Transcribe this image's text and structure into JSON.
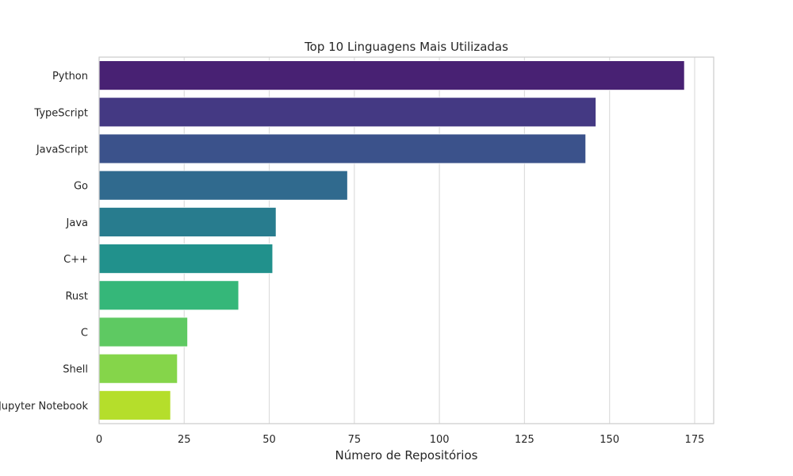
{
  "chart_data": {
    "type": "bar",
    "orientation": "horizontal",
    "title": "Top 10 Linguagens Mais Utilizadas",
    "xlabel": "Número de Repositórios",
    "ylabel": "",
    "categories": [
      "Python",
      "TypeScript",
      "JavaScript",
      "Go",
      "Java",
      "C++",
      "Rust",
      "C",
      "Shell",
      "Jupyter Notebook"
    ],
    "values": [
      172,
      146,
      143,
      73,
      52,
      51,
      41,
      26,
      23,
      21
    ],
    "colors": [
      "#482173",
      "#443983",
      "#3b528b",
      "#306a8e",
      "#287c8e",
      "#21918c",
      "#35b779",
      "#5ec962",
      "#85d54a",
      "#b5de2b"
    ],
    "xlim": [
      0,
      180.6
    ],
    "xticks": [
      0,
      25,
      50,
      75,
      100,
      125,
      150,
      175
    ],
    "grid": true,
    "legend": "none"
  }
}
